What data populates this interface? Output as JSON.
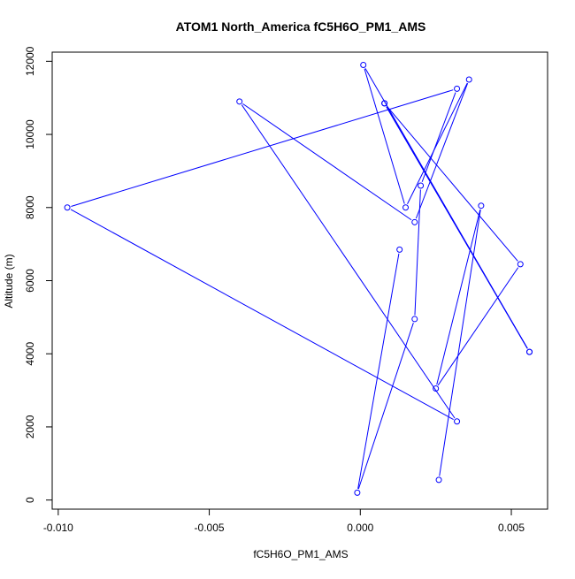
{
  "chart_data": {
    "type": "line",
    "title": "ATOM1 North_America fC5H6O_PM1_AMS",
    "xlabel": "fC5H6O_PM1_AMS",
    "ylabel": "Altitude (m)",
    "xlim": [
      -0.0102,
      0.0062
    ],
    "ylim": [
      -250,
      12250
    ],
    "xticks": [
      -0.01,
      -0.005,
      0.0,
      0.005
    ],
    "xtick_labels": [
      "-0.010",
      "-0.005",
      "0.000",
      "0.005"
    ],
    "yticks": [
      0,
      2000,
      4000,
      6000,
      8000,
      10000,
      12000
    ],
    "ytick_labels": [
      "0",
      "2000",
      "4000",
      "6000",
      "8000",
      "10000",
      "12000"
    ],
    "grid": false,
    "legend": "none",
    "series_color": "#0000ff",
    "series": [
      {
        "points": [
          {
            "x": 0.0013,
            "y": 6850
          },
          {
            "x": -0.0001,
            "y": 200
          },
          {
            "x": 0.0018,
            "y": 4950
          },
          {
            "x": 0.002,
            "y": 8600
          },
          {
            "x": 0.0032,
            "y": 11250
          },
          {
            "x": -0.0097,
            "y": 8000
          },
          {
            "x": 0.0032,
            "y": 2150
          },
          {
            "x": -0.004,
            "y": 10900
          },
          {
            "x": 0.0018,
            "y": 7600
          },
          {
            "x": 0.0036,
            "y": 11500
          },
          {
            "x": 0.0015,
            "y": 8000
          },
          {
            "x": 0.0001,
            "y": 11900
          },
          {
            "x": 0.0056,
            "y": 4050
          },
          {
            "x": 0.0008,
            "y": 10850
          },
          {
            "x": 0.0056,
            "y": 4050
          },
          {
            "x": 0.0008,
            "y": 10850
          },
          {
            "x": 0.0053,
            "y": 6450
          },
          {
            "x": 0.0025,
            "y": 3050
          },
          {
            "x": 0.004,
            "y": 8050
          },
          {
            "x": 0.0026,
            "y": 550
          }
        ]
      }
    ]
  }
}
